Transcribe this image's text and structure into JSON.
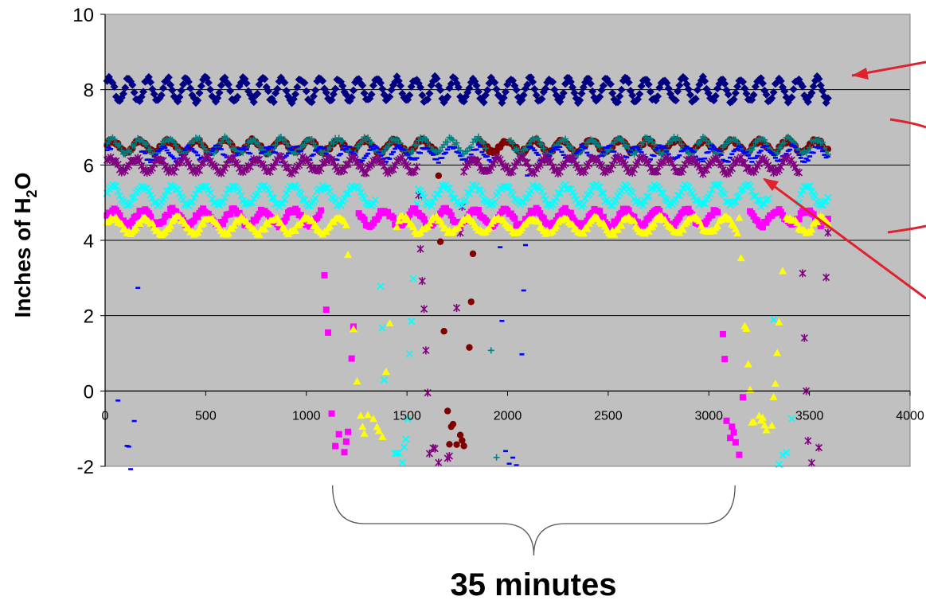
{
  "chart_data": {
    "type": "scatter",
    "ylabel_main": "Inches of H",
    "ylabel_sub": "2",
    "ylabel_end": "O",
    "xlim": [
      0,
      4000
    ],
    "ylim": [
      -2,
      10
    ],
    "x_ticks": [
      "0",
      "500",
      "1000",
      "1500",
      "2000",
      "2500",
      "3000",
      "3500",
      "4000"
    ],
    "y_ticks": [
      "-2",
      "0",
      "2",
      "4",
      "6",
      "8",
      "10"
    ],
    "grid": "horizontal",
    "plot_background": "#c0c0c0",
    "annotation": "35 minutes",
    "annotation_span": [
      1150,
      3150
    ],
    "x_range": [
      10,
      3600
    ],
    "series": [
      {
        "marker": "diamond",
        "color": "#000080",
        "level": 8.0,
        "amp": 0.3,
        "period": 95,
        "dips": []
      },
      {
        "marker": "circle",
        "color": "#800000",
        "level": 6.5,
        "amp": 0.15,
        "period": 140,
        "dips": [
          [
            1650,
            1850,
            6.5,
            -1.1
          ]
        ]
      },
      {
        "marker": "plus",
        "color": "#008080",
        "level": 6.5,
        "amp": 0.2,
        "period": 140,
        "dips": [
          [
            1900,
            2000,
            6.5,
            -1.7
          ]
        ]
      },
      {
        "marker": "dash",
        "color": "#0000ff",
        "level": 6.3,
        "amp": 0.18,
        "period": 130,
        "dips": [
          [
            30,
            180,
            6.3,
            -1.7
          ],
          [
            1950,
            2100,
            6.3,
            -1.9
          ]
        ]
      },
      {
        "marker": "x6",
        "color": "#800080",
        "level": 6.0,
        "amp": 0.18,
        "period": 120,
        "dips": [
          [
            1550,
            1780,
            6.0,
            -1.6
          ],
          [
            3450,
            3600,
            6.0,
            -1.6
          ]
        ]
      },
      {
        "marker": "x",
        "color": "#00ffff",
        "level": 5.2,
        "amp": 0.25,
        "period": 150,
        "dips": [
          [
            1350,
            1550,
            5.3,
            -1.7
          ],
          [
            3300,
            3450,
            5.3,
            -1.7
          ]
        ]
      },
      {
        "marker": "square",
        "color": "#ff00ff",
        "level": 4.6,
        "amp": 0.2,
        "period": 150,
        "dips": [
          [
            1080,
            1260,
            4.6,
            -1.3
          ],
          [
            3050,
            3200,
            4.6,
            -1.3
          ]
        ]
      },
      {
        "marker": "triangle",
        "color": "#ffff00",
        "level": 4.4,
        "amp": 0.2,
        "period": 160,
        "dips": [
          [
            1200,
            1450,
            4.4,
            -0.9
          ],
          [
            3150,
            3380,
            4.4,
            -1.0
          ]
        ]
      }
    ]
  },
  "arrows": {
    "color": "#e0212e"
  }
}
